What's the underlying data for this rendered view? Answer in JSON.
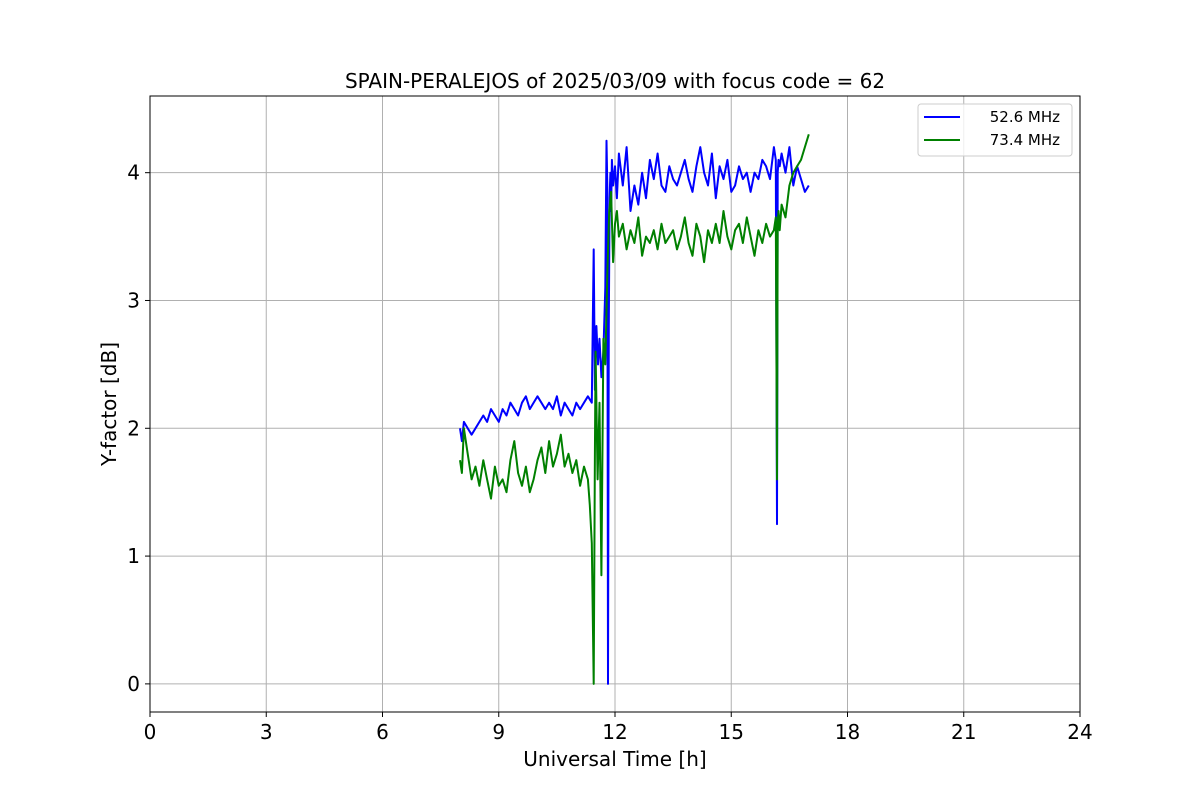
{
  "chart_data": {
    "type": "line",
    "title": "SPAIN-PERALEJOS of 2025/03/09 with focus code = 62",
    "xlabel": "Universal Time [h]",
    "ylabel": "Y-factor [dB]",
    "xlim": [
      0,
      24
    ],
    "ylim": [
      -0.22,
      4.6
    ],
    "xticks": [
      0,
      3,
      6,
      9,
      12,
      15,
      18,
      21,
      24
    ],
    "yticks": [
      0,
      1,
      2,
      3,
      4
    ],
    "grid": true,
    "legend_position": "top-right",
    "series": [
      {
        "name": "52.6 MHz",
        "color": "#0000ff",
        "x": [
          8.0,
          8.05,
          8.1,
          8.2,
          8.3,
          8.4,
          8.5,
          8.6,
          8.7,
          8.8,
          8.9,
          9.0,
          9.1,
          9.2,
          9.3,
          9.4,
          9.5,
          9.6,
          9.7,
          9.8,
          9.9,
          10.0,
          10.1,
          10.2,
          10.3,
          10.4,
          10.5,
          10.6,
          10.7,
          10.8,
          10.9,
          11.0,
          11.1,
          11.2,
          11.3,
          11.4,
          11.45,
          11.48,
          11.52,
          11.56,
          11.6,
          11.65,
          11.7,
          11.75,
          11.78,
          11.8,
          11.82,
          11.84,
          11.86,
          11.88,
          11.9,
          11.92,
          11.95,
          12.0,
          12.05,
          12.1,
          12.2,
          12.3,
          12.4,
          12.5,
          12.6,
          12.7,
          12.8,
          12.9,
          13.0,
          13.1,
          13.2,
          13.3,
          13.4,
          13.5,
          13.6,
          13.7,
          13.8,
          13.9,
          14.0,
          14.1,
          14.2,
          14.3,
          14.4,
          14.5,
          14.6,
          14.7,
          14.8,
          14.9,
          15.0,
          15.1,
          15.2,
          15.3,
          15.4,
          15.5,
          15.6,
          15.7,
          15.8,
          15.9,
          16.0,
          16.1,
          16.15,
          16.18,
          16.2,
          16.22,
          16.25,
          16.3,
          16.4,
          16.5,
          16.6,
          16.7,
          16.8,
          16.9,
          17.0
        ],
        "values": [
          2.0,
          1.9,
          2.05,
          2.0,
          1.95,
          2.0,
          2.05,
          2.1,
          2.05,
          2.15,
          2.1,
          2.05,
          2.15,
          2.1,
          2.2,
          2.15,
          2.1,
          2.2,
          2.25,
          2.15,
          2.2,
          2.25,
          2.2,
          2.15,
          2.2,
          2.15,
          2.25,
          2.1,
          2.2,
          2.15,
          2.1,
          2.2,
          2.15,
          2.2,
          2.25,
          2.2,
          3.4,
          2.3,
          2.8,
          2.5,
          2.7,
          2.4,
          2.6,
          3.1,
          4.25,
          3.9,
          0.0,
          2.8,
          3.8,
          4.0,
          3.7,
          4.1,
          3.9,
          4.05,
          3.8,
          4.15,
          3.9,
          4.2,
          3.7,
          3.9,
          3.75,
          4.0,
          3.8,
          4.1,
          3.95,
          4.15,
          3.9,
          3.85,
          4.05,
          3.95,
          3.9,
          4.0,
          4.1,
          3.95,
          3.85,
          4.05,
          4.2,
          4.0,
          3.9,
          4.15,
          3.8,
          4.05,
          3.95,
          4.1,
          3.85,
          3.9,
          4.05,
          3.95,
          4.0,
          3.85,
          4.0,
          3.95,
          4.1,
          4.05,
          3.95,
          4.2,
          4.1,
          1.25,
          4.0,
          4.1,
          4.05,
          4.15,
          4.0,
          4.2,
          3.9,
          4.05,
          3.95,
          3.85,
          3.9
        ]
      },
      {
        "name": "73.4 MHz",
        "color": "#008000",
        "x": [
          8.0,
          8.05,
          8.1,
          8.2,
          8.3,
          8.4,
          8.5,
          8.6,
          8.7,
          8.8,
          8.9,
          9.0,
          9.1,
          9.2,
          9.3,
          9.4,
          9.5,
          9.6,
          9.7,
          9.8,
          9.9,
          10.0,
          10.1,
          10.2,
          10.3,
          10.4,
          10.5,
          10.6,
          10.7,
          10.8,
          10.9,
          11.0,
          11.1,
          11.2,
          11.3,
          11.35,
          11.4,
          11.45,
          11.48,
          11.5,
          11.55,
          11.6,
          11.65,
          11.7,
          11.75,
          11.8,
          11.85,
          11.9,
          11.95,
          12.0,
          12.05,
          12.1,
          12.2,
          12.3,
          12.4,
          12.5,
          12.6,
          12.7,
          12.8,
          12.9,
          13.0,
          13.1,
          13.2,
          13.3,
          13.4,
          13.5,
          13.6,
          13.7,
          13.8,
          13.9,
          14.0,
          14.1,
          14.2,
          14.3,
          14.4,
          14.5,
          14.6,
          14.7,
          14.8,
          14.9,
          15.0,
          15.1,
          15.2,
          15.3,
          15.4,
          15.5,
          15.6,
          15.7,
          15.8,
          15.9,
          16.0,
          16.1,
          16.15,
          16.18,
          16.2,
          16.22,
          16.25,
          16.3,
          16.4,
          16.5,
          16.6,
          16.7,
          16.8,
          16.9,
          17.0
        ],
        "values": [
          1.75,
          1.65,
          2.0,
          1.8,
          1.6,
          1.7,
          1.55,
          1.75,
          1.6,
          1.45,
          1.7,
          1.55,
          1.6,
          1.5,
          1.75,
          1.9,
          1.65,
          1.55,
          1.7,
          1.5,
          1.6,
          1.75,
          1.85,
          1.65,
          1.9,
          1.7,
          1.8,
          1.95,
          1.7,
          1.8,
          1.65,
          1.75,
          1.55,
          1.7,
          1.6,
          1.4,
          1.1,
          0.0,
          1.8,
          2.6,
          1.6,
          2.2,
          0.85,
          2.7,
          2.5,
          3.2,
          3.7,
          3.85,
          3.3,
          3.6,
          3.7,
          3.5,
          3.6,
          3.4,
          3.55,
          3.45,
          3.65,
          3.35,
          3.5,
          3.45,
          3.55,
          3.4,
          3.6,
          3.45,
          3.5,
          3.55,
          3.4,
          3.5,
          3.65,
          3.45,
          3.35,
          3.6,
          3.5,
          3.3,
          3.55,
          3.45,
          3.6,
          3.45,
          3.7,
          3.5,
          3.4,
          3.55,
          3.6,
          3.45,
          3.65,
          3.5,
          3.35,
          3.55,
          3.45,
          3.6,
          3.5,
          3.55,
          3.65,
          1.6,
          3.6,
          3.7,
          3.55,
          3.75,
          3.65,
          3.9,
          4.0,
          4.05,
          4.1,
          4.2,
          4.3
        ]
      }
    ]
  }
}
